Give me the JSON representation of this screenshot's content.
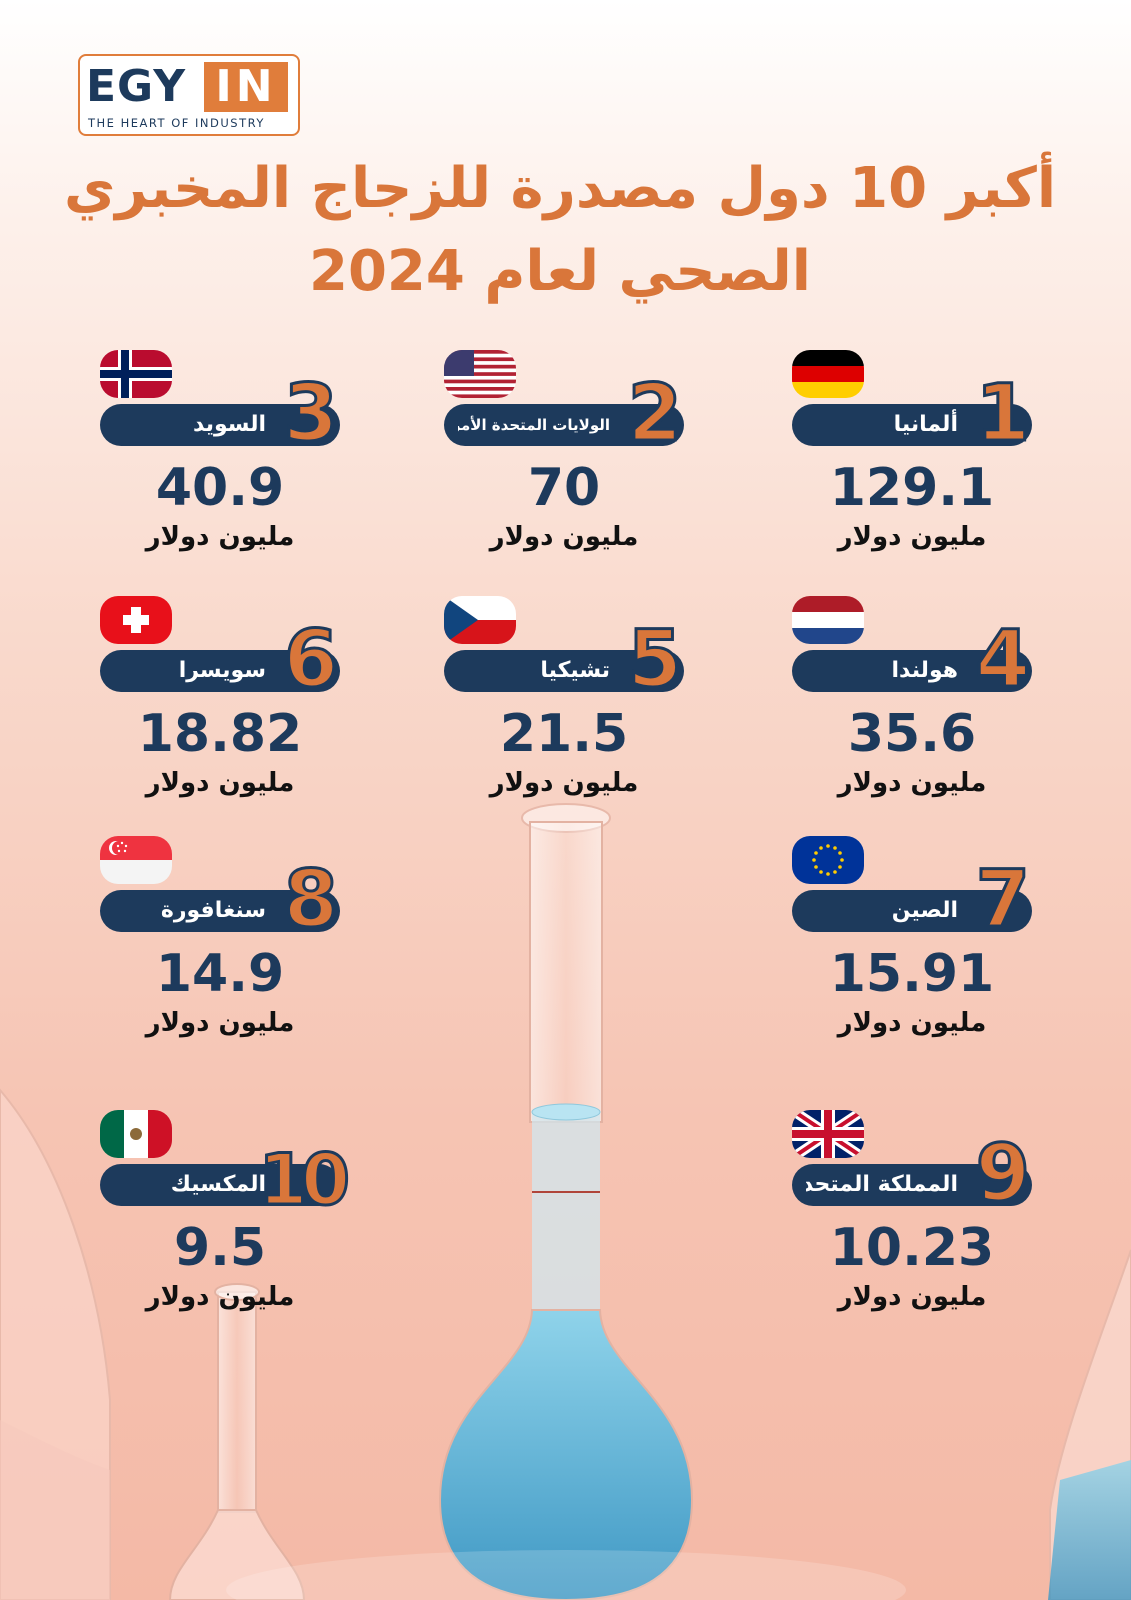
{
  "logo": {
    "left": "EGY",
    "right": "IN",
    "tagline": "THE HEART OF INDUSTRY"
  },
  "title": {
    "line1": "أكبر 10 دول مصدرة للزجاج المخبري",
    "line2": "الصحي لعام 2024"
  },
  "entries": [
    {
      "rank": "1",
      "name": "ألمانيا",
      "value": "129.1",
      "unit": "مليون دولار",
      "flag": "germany-flag"
    },
    {
      "rank": "2",
      "name": "الولايات المتحدة الأمريكية",
      "value": "70",
      "unit": "مليون دولار",
      "flag": "usa-flag"
    },
    {
      "rank": "3",
      "name": "السويد",
      "value": "40.9",
      "unit": "مليون دولار",
      "flag": "norway-style-flag"
    },
    {
      "rank": "4",
      "name": "هولندا",
      "value": "35.6",
      "unit": "مليون دولار",
      "flag": "netherlands-flag"
    },
    {
      "rank": "5",
      "name": "تشيكيا",
      "value": "21.5",
      "unit": "مليون دولار",
      "flag": "czechia-flag"
    },
    {
      "rank": "6",
      "name": "سويسرا",
      "value": "18.82",
      "unit": "مليون دولار",
      "flag": "switzerland-flag"
    },
    {
      "rank": "7",
      "name": "الصين",
      "value": "15.91",
      "unit": "مليون دولار",
      "flag": "eu-flag"
    },
    {
      "rank": "8",
      "name": "سنغافورة",
      "value": "14.9",
      "unit": "مليون دولار",
      "flag": "singapore-flag"
    },
    {
      "rank": "9",
      "name": "المملكة المتحدة",
      "value": "10.23",
      "unit": "مليون دولار",
      "flag": "uk-flag"
    },
    {
      "rank": "10",
      "name": "المكسيك",
      "value": "9.5",
      "unit": "مليون دولار",
      "flag": "mexico-flag"
    }
  ],
  "colors": {
    "accent": "#d9763a",
    "navy": "#1d3a5c",
    "liquid": "#5fb3d6"
  }
}
